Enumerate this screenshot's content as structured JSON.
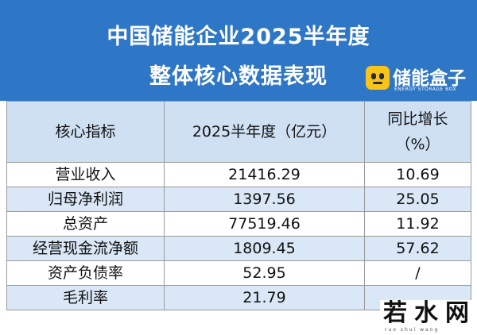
{
  "header": {
    "title_line1": "中国储能企业2025半年度",
    "title_line2": "整体核心数据表现"
  },
  "logo": {
    "name": "储能盒子",
    "subtitle": "ENERGY STORAGE BOX"
  },
  "table": {
    "columns": [
      "核心指标",
      "2025半年度（亿元）",
      "同比增长\n（%）"
    ],
    "column_lines": {
      "growth_line1": "同比增长",
      "growth_line2": "（%）"
    },
    "rows": [
      {
        "metric": "营业收入",
        "value": "21416.29",
        "growth": "10.69"
      },
      {
        "metric": "归母净利润",
        "value": "1397.56",
        "growth": "25.05"
      },
      {
        "metric": "总资产",
        "value": "77519.46",
        "growth": "11.92"
      },
      {
        "metric": "经营现金流净额",
        "value": "1809.45",
        "growth": "57.62"
      },
      {
        "metric": "资产负债率",
        "value": "52.95",
        "growth": "/"
      },
      {
        "metric": "毛利率",
        "value": "21.79",
        "growth": ""
      }
    ]
  },
  "watermark": {
    "text": "若水网",
    "subtitle": "ruo shui wang"
  },
  "colors": {
    "header_bg": "#2e76c6",
    "column_header_bg": "#cfe0f3",
    "row_alt_bg": "#d9e7f6",
    "logo_yellow": "#f7c519"
  }
}
